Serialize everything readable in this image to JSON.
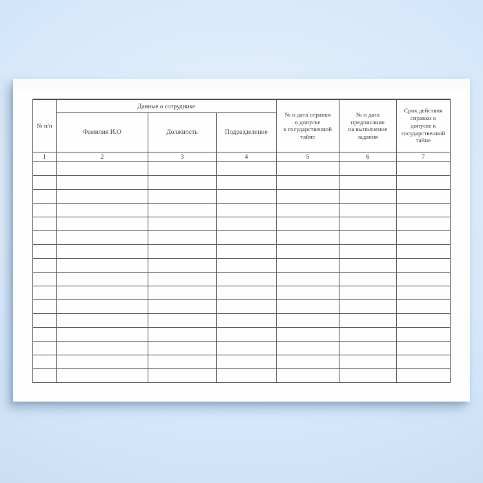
{
  "scene": {
    "background_color": "#d9eafb",
    "paper_color": "#fdfdfd"
  },
  "table": {
    "line_color": "#585858",
    "text_color": "#3a3a3a",
    "header": {
      "col1": "№ п/п",
      "group": "Данные о сотруднике",
      "sub": [
        "Фамилия И.О",
        "Должность",
        "Подразделение"
      ],
      "col5": "№ и дата справки\nо допуске\nк государственной\nтайне",
      "col6": "№ и дата\nпредписания\nна выполнение\nзадания",
      "col7": "Срок действия\nсправки о\nдопуске к\nгосударственной\nтайне"
    },
    "number_row": [
      "1",
      "2",
      "3",
      "4",
      "5",
      "6",
      "7"
    ],
    "empty_row_count": 16
  }
}
